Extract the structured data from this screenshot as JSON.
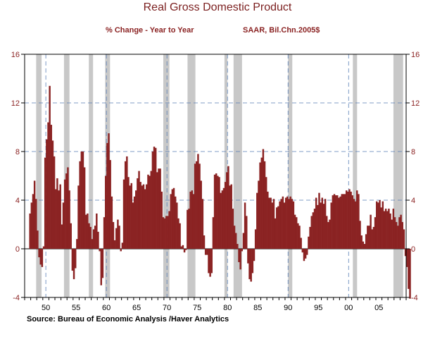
{
  "chart_data": {
    "type": "bar",
    "title": "Real Gross Domestic Product",
    "subtitle_left": "% Change - Year to Year",
    "subtitle_right": "SAAR, Bil.Chn.2005$",
    "source": "Source:  Bureau of Economic Analysis /Haver Analytics",
    "xlim": [
      1947,
      2010
    ],
    "ylim": [
      -4,
      16
    ],
    "yticks": [
      -4,
      0,
      4,
      8,
      12,
      16
    ],
    "ytick_labels": [
      "-4",
      "0",
      "4",
      "8",
      "12",
      "16"
    ],
    "xtick_labels": [
      "50",
      "55",
      "60",
      "65",
      "70",
      "75",
      "80",
      "85",
      "90",
      "95",
      "00",
      "05"
    ],
    "xtick_years": [
      1950,
      1955,
      1960,
      1965,
      1970,
      1975,
      1980,
      1985,
      1990,
      1995,
      2000,
      2005
    ],
    "recessions": [
      [
        1948.9,
        1949.8
      ],
      [
        1953.5,
        1954.4
      ],
      [
        1957.6,
        1958.3
      ],
      [
        1960.3,
        1961.1
      ],
      [
        1969.9,
        1970.9
      ],
      [
        1973.9,
        1975.2
      ],
      [
        1980.0,
        1980.5
      ],
      [
        1981.5,
        1982.9
      ],
      [
        1990.5,
        1991.2
      ],
      [
        2001.2,
        2001.9
      ],
      [
        2007.9,
        2009.5
      ]
    ],
    "quarter_start": 1947.75,
    "series": [
      {
        "values": [
          2.9,
          3.8,
          4.5,
          5.6,
          4.1,
          1.5,
          -0.7,
          -1.3,
          -1.5,
          0.2,
          7.5,
          9.0,
          10.4,
          13.4,
          10.2,
          8.9,
          7.6,
          4.9,
          5.8,
          4.8,
          5.3,
          2.0,
          3.8,
          5.7,
          6.2,
          6.7,
          4.8,
          2.1,
          -1.8,
          -2.5,
          -1.6,
          0.8,
          5.2,
          7.2,
          8.0,
          8.0,
          6.7,
          2.8,
          2.9,
          2.1,
          1.8,
          0.8,
          1.6,
          1.9,
          2.9,
          1.4,
          -0.2,
          -3.0,
          -2.4,
          2.6,
          6.0,
          8.7,
          9.5,
          7.3,
          4.3,
          2.2,
          0.7,
          1.7,
          2.4,
          1.9,
          -0.2,
          0.5,
          5.7,
          7.2,
          7.6,
          5.9,
          5.2,
          5.4,
          3.8,
          4.3,
          4.8,
          5.8,
          6.4,
          5.5,
          5.2,
          5.3,
          4.9,
          5.3,
          6.1,
          6.0,
          6.4,
          8.0,
          8.4,
          8.3,
          6.3,
          6.6,
          6.6,
          4.7,
          2.6,
          2.5,
          2.7,
          2.7,
          3.1,
          4.5,
          4.9,
          5.0,
          4.3,
          3.8,
          2.5,
          2.1,
          0.2,
          0.3,
          -0.3,
          -0.1,
          3.2,
          3.3,
          4.7,
          4.8,
          4.5,
          7.0,
          7.2,
          7.8,
          7.0,
          5.6,
          4.1,
          1.1,
          -0.5,
          -0.5,
          -2.0,
          -2.3,
          -2.0,
          2.6,
          6.1,
          6.2,
          6.0,
          5.9,
          4.6,
          4.8,
          5.0,
          5.5,
          6.3,
          6.8,
          5.2,
          5.3,
          3.3,
          1.9,
          1.3,
          0.4,
          -1.1,
          -1.7,
          -0.2,
          1.3,
          3.8,
          2.7,
          -1.2,
          -2.5,
          -2.7,
          -2.0,
          -1.0,
          1.6,
          4.6,
          5.6,
          7.1,
          7.5,
          8.2,
          7.2,
          5.9,
          4.7,
          4.2,
          4.2,
          3.8,
          4.1,
          2.5,
          3.4,
          3.5,
          3.9,
          4.1,
          4.3,
          3.8,
          4.2,
          4.3,
          4.1,
          4.3,
          4.1,
          3.9,
          2.8,
          2.6,
          2.1,
          1.9,
          0.9,
          -0.3,
          -1.0,
          -0.8,
          -0.5,
          1.0,
          1.8,
          2.7,
          3.0,
          3.3,
          4.2,
          3.6,
          4.6,
          3.8,
          4.2,
          3.7,
          4.1,
          2.7,
          2.2,
          2.4,
          3.8,
          4.4,
          4.5,
          4.4,
          4.4,
          4.2,
          4.3,
          4.5,
          4.5,
          4.5,
          4.8,
          4.7,
          4.9,
          4.7,
          4.4,
          4.1,
          3.9,
          4.8,
          4.5,
          2.3,
          1.1,
          0.6,
          0.4,
          1.2,
          1.9,
          1.9,
          2.8,
          1.6,
          1.8,
          2.6,
          3.9,
          3.8,
          4.0,
          3.4,
          3.9,
          3.1,
          3.3,
          3.1,
          3.3,
          2.9,
          2.4,
          3.3,
          2.6,
          2.2,
          1.9,
          2.6,
          2.8,
          2.2,
          1.6,
          -0.6,
          -1.5,
          -3.3,
          -4.1
        ]
      }
    ]
  }
}
